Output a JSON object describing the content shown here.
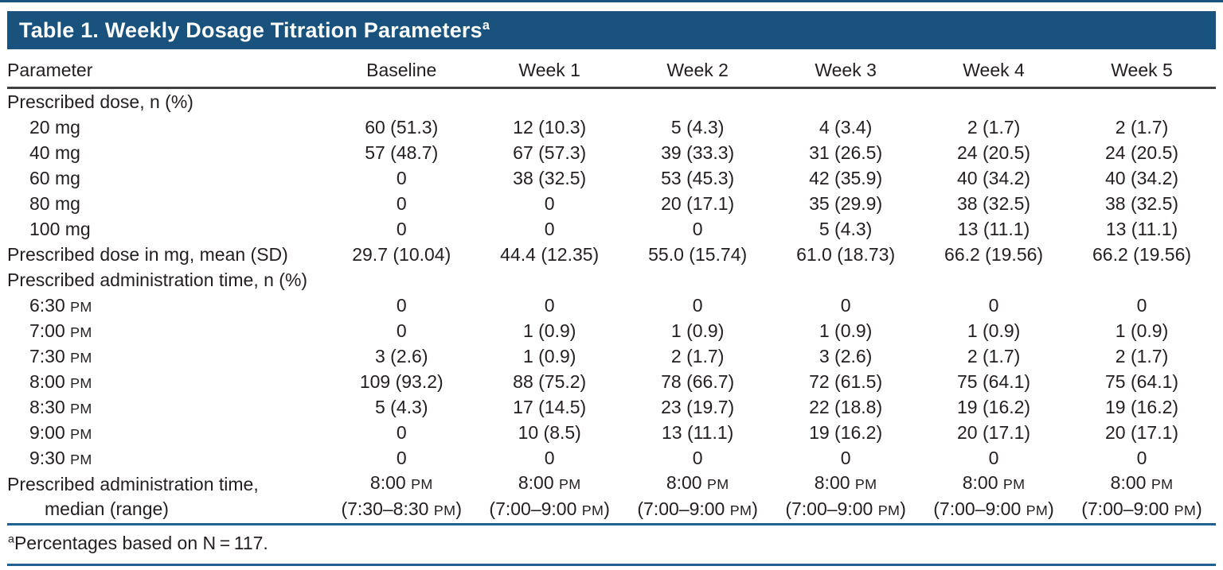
{
  "title": {
    "text": "Table 1. Weekly Dosage Titration Parameters",
    "sup": "a"
  },
  "colors": {
    "title_bar": "#1a527e",
    "header_rule": "#404041",
    "footnote_rule": "#1f6190",
    "text": "#231f20",
    "title_text": "#ffffff"
  },
  "table": {
    "columns": [
      "Parameter",
      "Baseline",
      "Week 1",
      "Week 2",
      "Week 3",
      "Week 4",
      "Week 5"
    ],
    "rows": [
      {
        "label": "Prescribed dose, n (%)",
        "indent": false,
        "values": [
          "",
          "",
          "",
          "",
          "",
          ""
        ]
      },
      {
        "label": "20 mg",
        "indent": true,
        "values": [
          "60 (51.3)",
          "12 (10.3)",
          "5 (4.3)",
          "4 (3.4)",
          "2 (1.7)",
          "2 (1.7)"
        ]
      },
      {
        "label": "40 mg",
        "indent": true,
        "values": [
          "57 (48.7)",
          "67 (57.3)",
          "39 (33.3)",
          "31 (26.5)",
          "24 (20.5)",
          "24 (20.5)"
        ]
      },
      {
        "label": "60 mg",
        "indent": true,
        "values": [
          "0",
          "38 (32.5)",
          "53 (45.3)",
          "42 (35.9)",
          "40 (34.2)",
          "40 (34.2)"
        ]
      },
      {
        "label": "80 mg",
        "indent": true,
        "values": [
          "0",
          "0",
          "20 (17.1)",
          "35 (29.9)",
          "38 (32.5)",
          "38 (32.5)"
        ]
      },
      {
        "label": "100 mg",
        "indent": true,
        "values": [
          "0",
          "0",
          "0",
          "5 (4.3)",
          "13 (11.1)",
          "13 (11.1)"
        ]
      },
      {
        "label": "Prescribed dose in mg, mean (SD)",
        "indent": false,
        "values": [
          "29.7 (10.04)",
          "44.4 (12.35)",
          "55.0 (15.74)",
          "61.0 (18.73)",
          "66.2 (19.56)",
          "66.2 (19.56)"
        ]
      },
      {
        "label": "Prescribed administration time, n (%)",
        "indent": false,
        "values": [
          "",
          "",
          "",
          "",
          "",
          ""
        ]
      },
      {
        "label": "6:30 PM",
        "indent": true,
        "values": [
          "0",
          "0",
          "0",
          "0",
          "0",
          "0"
        ]
      },
      {
        "label": "7:00 PM",
        "indent": true,
        "values": [
          "0",
          "1 (0.9)",
          "1 (0.9)",
          "1 (0.9)",
          "1 (0.9)",
          "1 (0.9)"
        ]
      },
      {
        "label": "7:30 PM",
        "indent": true,
        "values": [
          "3 (2.6)",
          "1 (0.9)",
          "2 (1.7)",
          "3 (2.6)",
          "2 (1.7)",
          "2 (1.7)"
        ]
      },
      {
        "label": "8:00 PM",
        "indent": true,
        "values": [
          "109 (93.2)",
          "88 (75.2)",
          "78 (66.7)",
          "72 (61.5)",
          "75 (64.1)",
          "75 (64.1)"
        ]
      },
      {
        "label": "8:30 PM",
        "indent": true,
        "values": [
          "5 (4.3)",
          "17 (14.5)",
          "23 (19.7)",
          "22 (18.8)",
          "19 (16.2)",
          "19 (16.2)"
        ]
      },
      {
        "label": "9:00 PM",
        "indent": true,
        "values": [
          "0",
          "10 (8.5)",
          "13 (11.1)",
          "19 (16.2)",
          "20 (17.1)",
          "20 (17.1)"
        ]
      },
      {
        "label": "9:30 PM",
        "indent": true,
        "values": [
          "0",
          "0",
          "0",
          "0",
          "0",
          "0"
        ]
      },
      {
        "label": [
          "Prescribed administration time,",
          "median (range)"
        ],
        "indent": false,
        "label_line2_indent": true,
        "values": [
          [
            "8:00 PM",
            "(7:30–8:30 PM)"
          ],
          [
            "8:00 PM",
            "(7:00–9:00 PM)"
          ],
          [
            "8:00 PM",
            "(7:00–9:00 PM)"
          ],
          [
            "8:00 PM",
            "(7:00–9:00 PM)"
          ],
          [
            "8:00 PM",
            "(7:00–9:00 PM)"
          ],
          [
            "8:00 PM",
            "(7:00–9:00 PM)"
          ]
        ]
      }
    ]
  },
  "footnote": {
    "sup": "a",
    "text": "Percentages based on N = 117."
  }
}
